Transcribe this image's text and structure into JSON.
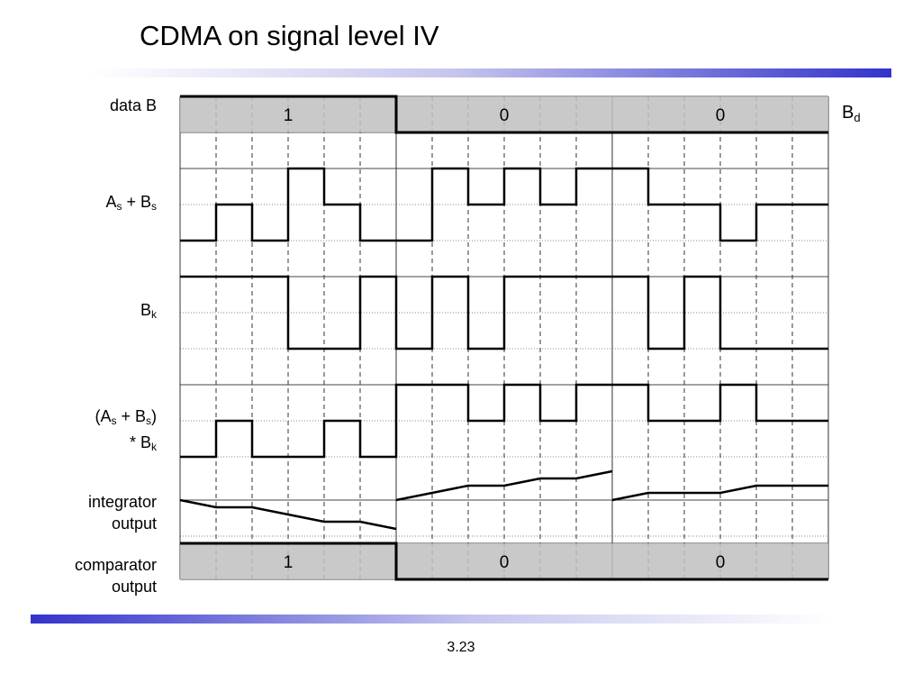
{
  "slide": {
    "title": "CDMA on signal level IV",
    "page_number": "3.23"
  },
  "labels": {
    "data_b": "data B",
    "as_bs_main": "A",
    "as_bs_sub1": "s",
    "as_bs_mid": " + B",
    "as_bs_sub2": "s",
    "bk_main": "B",
    "bk_sub": "k",
    "prod_l1_a": "(A",
    "prod_l1_s1": "s",
    "prod_l1_b": " + B",
    "prod_l1_s2": "s",
    "prod_l1_c": ")",
    "prod_l2_a": "* B",
    "prod_l2_s": "k",
    "integrator_l1": "integrator",
    "integrator_l2": "output",
    "comparator_l1": "comparator",
    "comparator_l2": "output",
    "bd_main": "B",
    "bd_sub": "d"
  },
  "diagram": {
    "bits": [
      "1",
      "0",
      "0"
    ],
    "comparator_bits": [
      "1",
      "0",
      "0"
    ],
    "chips_per_bit": 6,
    "data_signal": [
      1,
      0,
      0
    ],
    "sum_signal": [
      -1,
      0,
      -1,
      1,
      0,
      -1,
      -1,
      1,
      0,
      1,
      0,
      1,
      1,
      0,
      0,
      -1,
      0,
      0
    ],
    "code_signal": [
      1,
      1,
      1,
      -1,
      -1,
      1,
      -1,
      1,
      -1,
      1,
      1,
      1,
      1,
      -1,
      1,
      -1,
      -1,
      -1
    ],
    "product_signal": [
      -1,
      0,
      -1,
      -1,
      0,
      -1,
      1,
      1,
      0,
      1,
      0,
      1,
      1,
      0,
      0,
      1,
      0,
      0
    ],
    "colors": {
      "bit_fill": "#bfbfbf",
      "line": "#000000",
      "grid": "#888888",
      "accent": "#3333cc"
    }
  }
}
